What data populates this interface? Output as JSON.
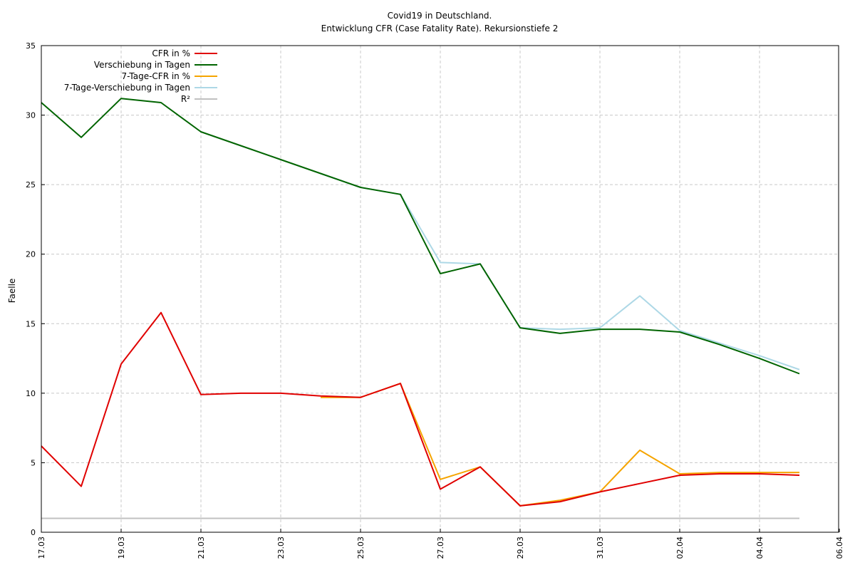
{
  "chart_data": {
    "type": "line",
    "title": "Covid19 in Deutschland.",
    "subtitle": "Entwicklung CFR (Case Fatality Rate). Rekursionstiefe 2",
    "xlabel": "",
    "ylabel": "Faelle",
    "ylim": [
      0,
      35
    ],
    "yticks": [
      0,
      5,
      10,
      15,
      20,
      25,
      30,
      35
    ],
    "xticks": [
      "17.03",
      "19.03",
      "21.03",
      "23.03",
      "25.03",
      "27.03",
      "29.03",
      "31.03",
      "02.04",
      "04.04",
      "06.04"
    ],
    "x": [
      "17.03",
      "18.03",
      "19.03",
      "20.03",
      "21.03",
      "22.03",
      "23.03",
      "24.03",
      "25.03",
      "26.03",
      "27.03",
      "28.03",
      "29.03",
      "30.03",
      "31.03",
      "01.04",
      "02.04",
      "03.04",
      "04.04",
      "05.04"
    ],
    "grid": true,
    "legend_position": "top-left",
    "series": [
      {
        "name": "CFR in %",
        "color": "#e00000",
        "values": [
          6.2,
          3.3,
          12.1,
          15.8,
          9.9,
          10.0,
          10.0,
          9.8,
          9.7,
          10.7,
          3.1,
          4.7,
          1.9,
          2.2,
          2.9,
          3.5,
          4.1,
          4.2,
          4.2,
          4.1
        ]
      },
      {
        "name": "Verschiebung in Tagen",
        "color": "#006400",
        "values": [
          30.9,
          28.4,
          31.2,
          30.9,
          28.8,
          27.8,
          26.8,
          25.8,
          24.8,
          24.3,
          18.6,
          19.3,
          14.7,
          14.3,
          14.6,
          14.6,
          14.4,
          13.5,
          12.5,
          11.4
        ]
      },
      {
        "name": "7-Tage-CFR in %",
        "color": "#f5a400",
        "values": [
          null,
          null,
          null,
          null,
          null,
          null,
          null,
          9.7,
          9.7,
          10.7,
          3.8,
          4.7,
          1.9,
          2.3,
          2.9,
          5.9,
          4.2,
          4.3,
          4.3,
          4.3
        ]
      },
      {
        "name": "7-Tage-Verschiebung in Tagen",
        "color": "#add8e6",
        "values": [
          null,
          null,
          null,
          null,
          null,
          null,
          null,
          25.8,
          24.8,
          24.3,
          19.4,
          19.3,
          14.7,
          14.6,
          14.7,
          17.0,
          14.5,
          13.6,
          12.7,
          11.7
        ]
      },
      {
        "name": "R²",
        "color": "#c0c0c0",
        "values": [
          1,
          1,
          1,
          1,
          1,
          1,
          1,
          1,
          1,
          1,
          1,
          1,
          1,
          1,
          1,
          1,
          1,
          1,
          1,
          1
        ]
      }
    ]
  }
}
